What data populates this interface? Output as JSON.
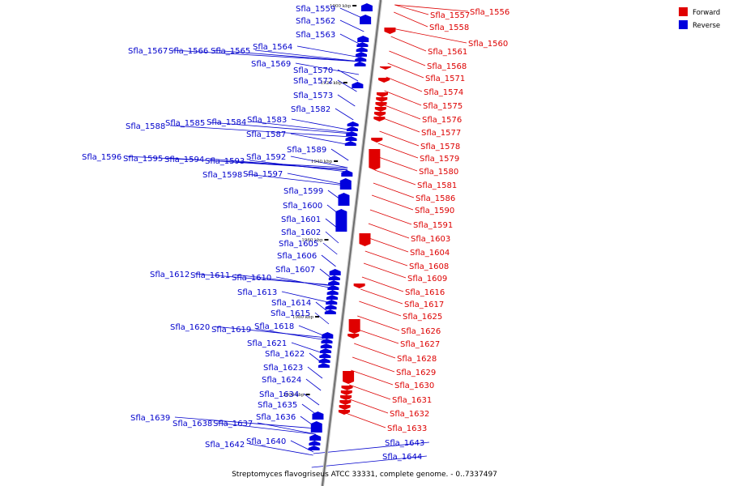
{
  "caption": "Streptomyces flavogriseus ATCC 33331, complete genome. - 0..7337497",
  "legend": [
    {
      "label": "Forward",
      "color": "#ee0000"
    },
    {
      "label": "Reverse",
      "color": "#0000ee"
    }
  ],
  "ticks": [
    "1900 kbp",
    "1920 kbp",
    "1940 kbp",
    "1960 kbp",
    "1980 kbp",
    "2000 kbp"
  ],
  "reverse_genes": [
    "Sfla_1559",
    "Sfla_1562",
    "Sfla_1563",
    "Sfla_1564",
    "Sfla_1565",
    "Sfla_1566",
    "Sfla_1567",
    "Sfla_1569",
    "Sfla_1570",
    "Sfla_1572",
    "Sfla_1573",
    "Sfla_1582",
    "Sfla_1583",
    "Sfla_1584",
    "Sfla_1585",
    "Sfla_1588",
    "Sfla_1587",
    "Sfla_1589",
    "Sfla_1592",
    "Sfla_1593",
    "Sfla_1594",
    "Sfla_1595",
    "Sfla_1596",
    "Sfla_1597",
    "Sfla_1598",
    "Sfla_1599",
    "Sfla_1600",
    "Sfla_1601",
    "Sfla_1602",
    "Sfla_1605",
    "Sfla_1606",
    "Sfla_1607",
    "Sfla_1610",
    "Sfla_1611",
    "Sfla_1612",
    "Sfla_1613",
    "Sfla_1614",
    "Sfla_1615",
    "Sfla_1618",
    "Sfla_1619",
    "Sfla_1620",
    "Sfla_1621",
    "Sfla_1622",
    "Sfla_1623",
    "Sfla_1624",
    "Sfla_1634",
    "Sfla_1635",
    "Sfla_1636",
    "Sfla_1637",
    "Sfla_1638",
    "Sfla_1639",
    "Sfla_1640",
    "Sfla_1642",
    "Sfla_1643",
    "Sfla_1644"
  ],
  "forward_genes": [
    "Sfla_1556",
    "Sfla_1557",
    "Sfla_1558",
    "Sfla_1560",
    "Sfla_1561",
    "Sfla_1568",
    "Sfla_1571",
    "Sfla_1574",
    "Sfla_1575",
    "Sfla_1576",
    "Sfla_1577",
    "Sfla_1578",
    "Sfla_1579",
    "Sfla_1580",
    "Sfla_1581",
    "Sfla_1586",
    "Sfla_1590",
    "Sfla_1591",
    "Sfla_1603",
    "Sfla_1604",
    "Sfla_1608",
    "Sfla_1609",
    "Sfla_1616",
    "Sfla_1617",
    "Sfla_1625",
    "Sfla_1626",
    "Sfla_1627",
    "Sfla_1628",
    "Sfla_1629",
    "Sfla_1630",
    "Sfla_1631",
    "Sfla_1632",
    "Sfla_1633"
  ]
}
